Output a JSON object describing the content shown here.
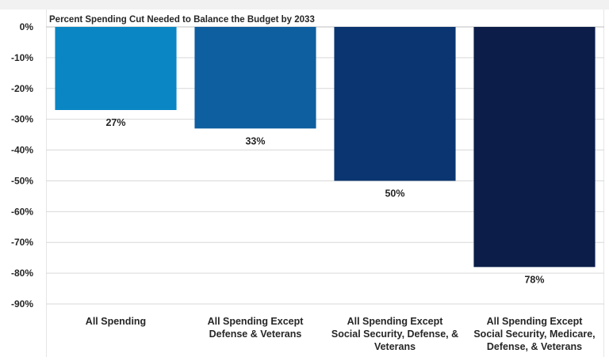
{
  "chart_data": {
    "type": "bar",
    "title": "Percent Spending Cut Needed to Balance the Budget by 2033",
    "xlabel": "",
    "ylabel": "",
    "categories": [
      [
        "All Spending"
      ],
      [
        "All Spending Except",
        "Defense & Veterans"
      ],
      [
        "All Spending Except",
        "Social Security, Defense, &",
        "Veterans"
      ],
      [
        "All Spending Except",
        "Social Security, Medicare,",
        "Defense, & Veterans"
      ]
    ],
    "values": [
      -27,
      -33,
      -50,
      -78
    ],
    "data_labels": [
      "27%",
      "33%",
      "50%",
      "78%"
    ],
    "bar_colors": [
      "#0a86c4",
      "#0e5fa0",
      "#0a3570",
      "#0b1d48"
    ],
    "ylim": [
      -90,
      0
    ],
    "yticks": [
      0,
      -10,
      -20,
      -30,
      -40,
      -50,
      -60,
      -70,
      -80,
      -90
    ],
    "ytick_labels": [
      "0%",
      "-10%",
      "-20%",
      "-30%",
      "-40%",
      "-50%",
      "-60%",
      "-70%",
      "-80%",
      "-90%"
    ],
    "grid": true,
    "legend": "none"
  }
}
